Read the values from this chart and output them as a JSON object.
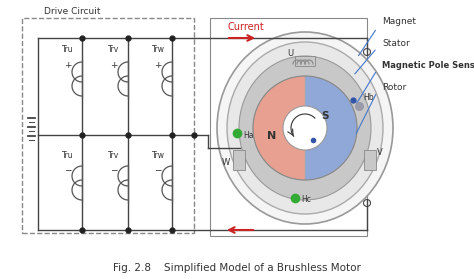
{
  "title": "Fig. 2.8    Simplified Model of a Brushless Motor",
  "background_color": "#ffffff",
  "drive_circuit_label": "Drive Circuit",
  "current_label": "Current",
  "colors": {
    "dashed_box": "#888888",
    "wire": "#444444",
    "arrow_red": "#cc2222",
    "transistor": "#555555",
    "outer_circle_fill": "#f0f0f0",
    "outer_circle_edge": "#888888",
    "stator_fill": "#e8e8e8",
    "stator_edge": "#888888",
    "rotor_N": "#e8a090",
    "rotor_S": "#90a8d8",
    "inner_fill": "#ffffff",
    "inner_edge": "#888888",
    "Ha_color": "#33aa33",
    "Hb_color": "#9999aa",
    "Hc_color": "#33aa33",
    "blue_dot": "#3355aa",
    "label_line": "#4477cc",
    "coil_fill": "#ddddcc",
    "coil_edge": "#888877",
    "junction": "#222222"
  },
  "fig_width": 4.74,
  "fig_height": 2.79,
  "dpi": 100
}
